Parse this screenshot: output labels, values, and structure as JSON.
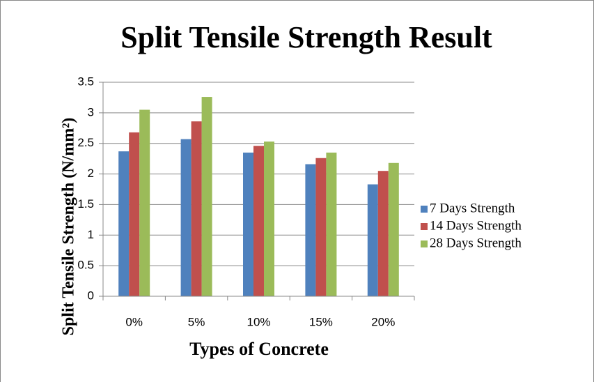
{
  "chart_data": {
    "type": "bar",
    "title": "Split Tensile Strength Result",
    "x_label": "Types of Concrete",
    "y_label": "Split Tensile Strength (N/mm²)",
    "categories": [
      "0%",
      "5%",
      "10%",
      "15%",
      "20%"
    ],
    "series": [
      {
        "name": "7 Days Strength",
        "color": "#4f81bd",
        "values": [
          2.37,
          2.57,
          2.35,
          2.16,
          1.83
        ]
      },
      {
        "name": "14 Days Strength",
        "color": "#c0504d",
        "values": [
          2.68,
          2.86,
          2.46,
          2.26,
          2.05
        ]
      },
      {
        "name": "28 Days Strength",
        "color": "#9bbb59",
        "values": [
          3.05,
          3.26,
          2.53,
          2.35,
          2.18
        ]
      }
    ],
    "ylim": [
      0,
      3.5
    ],
    "yticks": [
      0,
      0.5,
      1,
      1.5,
      2,
      2.5,
      3,
      3.5
    ],
    "grid": true,
    "legend": "right"
  }
}
